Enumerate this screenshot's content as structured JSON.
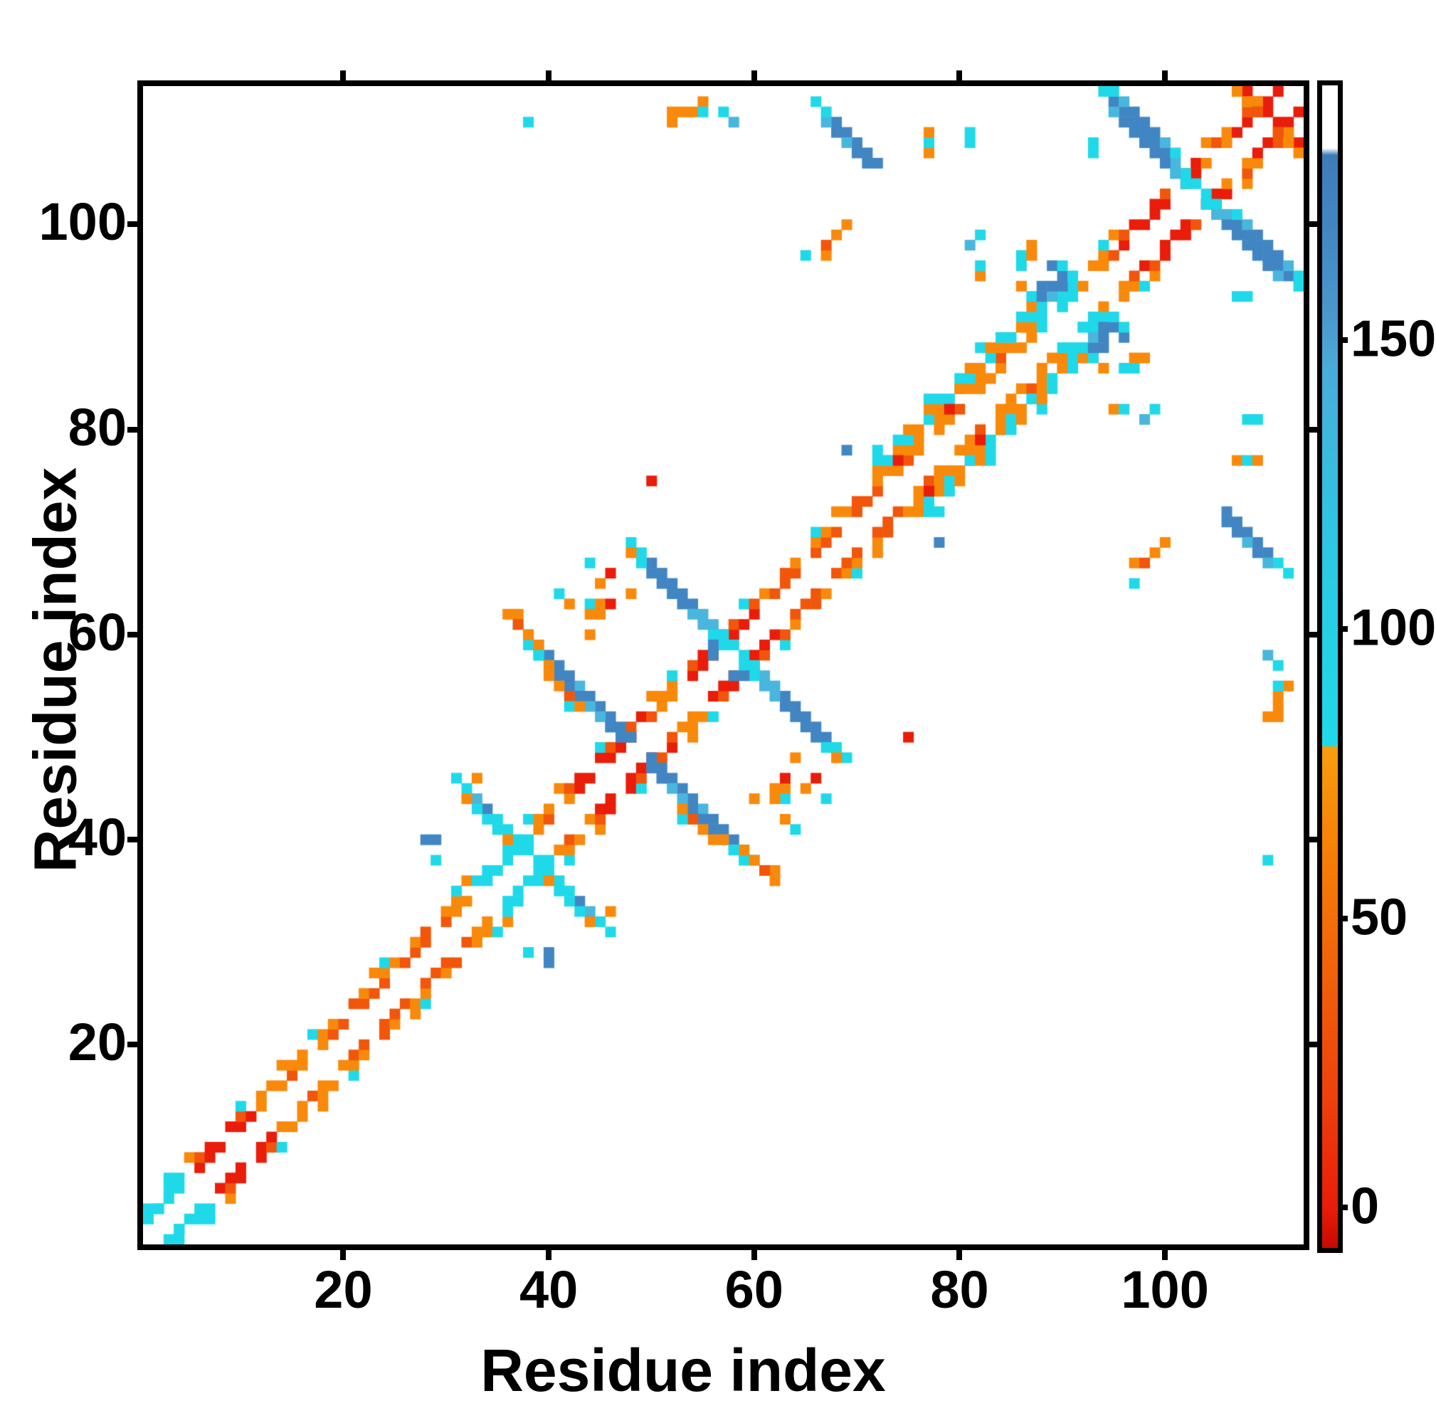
{
  "figure": {
    "background": "#ffffff",
    "frame_color": "#000000"
  },
  "axes": {
    "x_label": "Residue index",
    "y_label": "Residue index",
    "x_ticks": [
      20,
      40,
      60,
      80,
      100
    ],
    "y_ticks": [
      20,
      40,
      60,
      80,
      100
    ],
    "n_residues": 113,
    "ticks_on_all_sides": true
  },
  "colorbar": {
    "ticks": [
      0,
      50,
      100,
      150
    ],
    "vmin": -7,
    "vmax": 194,
    "gradient_note": "red at 0, orange to ~80, sharp switch to cyan, steel blue ~160-182, white cap at top",
    "colors": {
      "red": "#e91d09",
      "orange": "#f87d07",
      "cyan": "#1fd9e9",
      "steel_blue": "#4186c3",
      "white_cap": "#ffffff"
    }
  },
  "chart_data": {
    "type": "heatmap",
    "subtype": "protein-contact-map, symmetric about the main diagonal, white = no contact",
    "x": "residue index 1-113",
    "y": "residue index 1-113",
    "palette": {
      "R": "#e91d0a",
      "D": "#f1560b",
      "O": "#f9890a",
      "C": "#1fd9e9",
      "L": "#49b6dd",
      "B": "#4186c3"
    },
    "braid": {
      "comment": "near-diagonal woven band, offsets |i-j| = 2,3,(4)",
      "i0": 1,
      "i1": 111,
      "red_zones": [
        [
          5,
          11
        ],
        [
          43,
          49
        ],
        [
          53,
          60
        ],
        [
          96,
          103
        ],
        [
          107,
          113
        ]
      ],
      "dark_zones": [
        [
          19,
          28
        ],
        [
          62,
          72
        ]
      ],
      "cyan_zones": [
        [
          1,
          4
        ],
        [
          33,
          38
        ],
        [
          88,
          91
        ]
      ]
    },
    "helix_band": {
      "comment": "widened diagonal band offsets 4-6, orange/cyan mix",
      "i0": 72,
      "i1": 87
    },
    "antibands": [
      {
        "name": "hairpin-X-at-38",
        "sum": 77,
        "i0": 31,
        "colors": [
          "C",
          "C",
          "L",
          "B",
          "C",
          "C",
          "C",
          "C"
        ],
        "colors2": [
          ".",
          "O",
          "C",
          "C",
          "C",
          "O",
          "C",
          "."
        ]
      },
      {
        "name": "X-at-49",
        "sum": 98,
        "i0": 37,
        "colors": [
          "C",
          "C",
          "L",
          "B",
          "B",
          "B",
          "L",
          "B",
          "B",
          "B",
          "B",
          "B"
        ],
        "colors2": [
          ".",
          "C",
          "C",
          "L",
          "B",
          "B",
          "B",
          "L",
          "L",
          "B",
          "B",
          "."
        ]
      },
      {
        "name": "X-at-58",
        "sum": 117,
        "i0": 48,
        "colors": [
          "C",
          "C",
          "B",
          "B",
          "B",
          "B",
          "B",
          "L",
          "L",
          "C",
          "C"
        ],
        "colors2": [
          ".",
          "C",
          "B",
          "B",
          "B",
          "B",
          "L",
          "L",
          "C",
          "C",
          "."
        ]
      },
      {
        "name": "X-at-103",
        "sum": 207,
        "i0": 94,
        "colors": [
          "C",
          "B",
          "B",
          "B",
          "B",
          "B",
          "B",
          "L",
          "C",
          "C"
        ],
        "colors2": [
          ".",
          "L",
          "B",
          "B",
          "B",
          "B",
          "B",
          "L",
          "C",
          "."
        ],
        "colors3": [
          "C",
          "C",
          "L",
          "B",
          "B",
          "B",
          "L",
          "C",
          ".",
          "."
        ]
      },
      {
        "name": "corner-X-at-110",
        "sum": 221,
        "i0": 108,
        "colors": [
          "R",
          "O",
          "R"
        ],
        "colors2": [
          "O",
          "D",
          "O"
        ]
      },
      {
        "name": "corner-X-width",
        "sum": 220,
        "i0": 107,
        "colors": [
          "O",
          "O",
          "D",
          "O"
        ]
      },
      {
        "name": "offdiag-band-66-72-vs-106-112",
        "sum": 178,
        "i0": 66,
        "colors": [
          "C",
          "C",
          "B",
          "B",
          "B",
          "B",
          "B"
        ],
        "colors2": [
          ".",
          "L",
          "B",
          "L",
          "B",
          "B",
          "."
        ]
      }
    ],
    "singles": [
      [
        1,
        3,
        "C"
      ],
      [
        2,
        4,
        "C"
      ],
      [
        28,
        40,
        "B"
      ],
      [
        29,
        40,
        "B"
      ],
      [
        29,
        38,
        "C"
      ],
      [
        33,
        46,
        "O"
      ],
      [
        36,
        62,
        "O"
      ],
      [
        37,
        62,
        "O"
      ],
      [
        37,
        61,
        "D"
      ],
      [
        38,
        60,
        "O"
      ],
      [
        39,
        59,
        "O"
      ],
      [
        39,
        58,
        "C"
      ],
      [
        40,
        57,
        "O"
      ],
      [
        40,
        56,
        "O"
      ],
      [
        41,
        55,
        "O"
      ],
      [
        42,
        54,
        "D"
      ],
      [
        42,
        53,
        "C"
      ],
      [
        43,
        53,
        "O"
      ],
      [
        41,
        64,
        "C"
      ],
      [
        42,
        63,
        "O"
      ],
      [
        44,
        67,
        "C"
      ],
      [
        45,
        65,
        "O"
      ],
      [
        46,
        66,
        "R"
      ],
      [
        44,
        63,
        "C"
      ],
      [
        45,
        63,
        "O"
      ],
      [
        46,
        63,
        "R"
      ],
      [
        44,
        62,
        "O"
      ],
      [
        45,
        62,
        "O"
      ],
      [
        44,
        60,
        "O"
      ],
      [
        46,
        51,
        "B"
      ],
      [
        56,
        58,
        "B"
      ],
      [
        56,
        59,
        "B"
      ],
      [
        48,
        68,
        "O"
      ],
      [
        48,
        64,
        "O"
      ],
      [
        50,
        75,
        "R"
      ],
      [
        69,
        78,
        "B"
      ],
      [
        74,
        77,
        "R"
      ],
      [
        79,
        82,
        "R"
      ],
      [
        65,
        97,
        "C"
      ],
      [
        67,
        97,
        "O"
      ],
      [
        67,
        98,
        "D"
      ],
      [
        68,
        99,
        "O"
      ],
      [
        69,
        100,
        "O"
      ],
      [
        77,
        107,
        "O"
      ],
      [
        77,
        108,
        "C"
      ],
      [
        77,
        109,
        "O"
      ],
      [
        81,
        98,
        "L"
      ],
      [
        82,
        95,
        "O"
      ],
      [
        82,
        96,
        "C"
      ],
      [
        82,
        99,
        "C"
      ],
      [
        81,
        108,
        "C"
      ],
      [
        81,
        109,
        "C"
      ],
      [
        86,
        94,
        "O"
      ],
      [
        86,
        96,
        "C"
      ],
      [
        86,
        97,
        "C"
      ],
      [
        87,
        97,
        "O"
      ],
      [
        87,
        98,
        "O"
      ],
      [
        88,
        92,
        "C"
      ],
      [
        88,
        93,
        "B"
      ],
      [
        88,
        94,
        "B"
      ],
      [
        89,
        93,
        "L"
      ],
      [
        89,
        94,
        "B"
      ],
      [
        89,
        96,
        "B"
      ],
      [
        90,
        92,
        "C"
      ],
      [
        90,
        94,
        "B"
      ],
      [
        90,
        95,
        "B"
      ],
      [
        90,
        96,
        "C"
      ],
      [
        91,
        93,
        "C"
      ],
      [
        91,
        95,
        "C"
      ],
      [
        93,
        107,
        "C"
      ],
      [
        93,
        108,
        "C"
      ],
      [
        38,
        110,
        "C"
      ],
      [
        52,
        110,
        "O"
      ],
      [
        52,
        111,
        "O"
      ],
      [
        53,
        111,
        "O"
      ],
      [
        54,
        111,
        "O"
      ],
      [
        55,
        112,
        "O"
      ],
      [
        55,
        111,
        "C"
      ],
      [
        57,
        111,
        "C"
      ],
      [
        58,
        110,
        "L"
      ]
    ]
  }
}
